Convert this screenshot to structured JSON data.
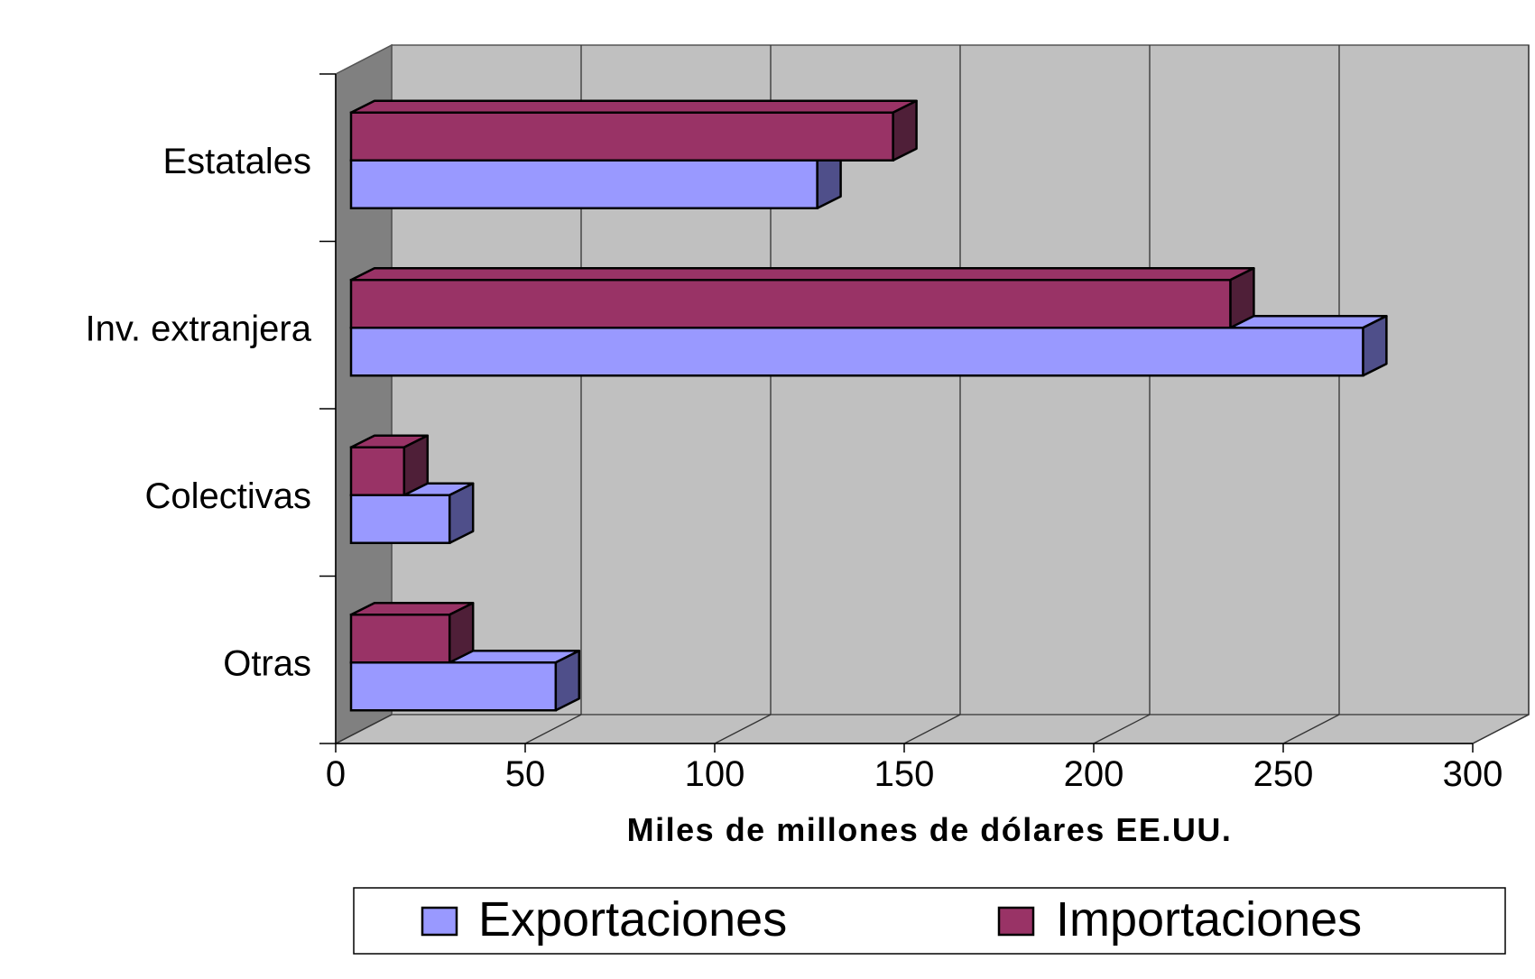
{
  "chart_data": {
    "type": "bar",
    "orientation": "horizontal",
    "style": "3d-clustered",
    "title": "",
    "categories": [
      "Estatales",
      "Inv. extranjera",
      "Colectivas",
      "Otras"
    ],
    "series": [
      {
        "name": "Exportaciones",
        "values": [
          123,
          267,
          26,
          54
        ],
        "color": "#9999ff",
        "side_color": "#4f4f8a"
      },
      {
        "name": "Importaciones",
        "values": [
          143,
          232,
          14,
          26
        ],
        "color": "#993366",
        "side_color": "#4f1f38"
      }
    ],
    "xlabel": "Miles de millones de dólares EE.UU.",
    "ylabel": "",
    "xlim": [
      0,
      300
    ],
    "xticks": [
      "0",
      "50",
      "100",
      "150",
      "200",
      "250",
      "300"
    ],
    "grid": true,
    "legend_position": "bottom",
    "colors": {
      "wall": "#c0c0c0",
      "side_wall": "#808080",
      "floor": "#c0c0c0",
      "grid": "#333333"
    }
  }
}
